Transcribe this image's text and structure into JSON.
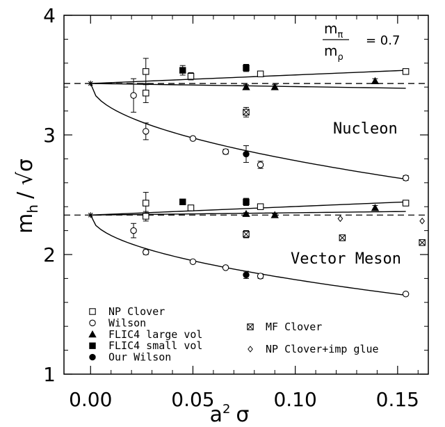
{
  "chart_data": {
    "type": "scatter",
    "title": "",
    "xlabel": "a",
    "xlabel_sup": "2",
    "xlabel_sub": "σ",
    "ylabel_main": "m",
    "ylabel_sub": "h",
    "ylabel_rest": "/ √σ",
    "xlim": [
      -0.013,
      0.165
    ],
    "ylim": [
      1.0,
      4.0
    ],
    "x_ticks": [
      0.0,
      0.05,
      0.1,
      0.15
    ],
    "x_tick_labels": [
      "0.00",
      "0.05",
      "0.10",
      "0.15"
    ],
    "y_ticks": [
      1,
      2,
      3,
      4
    ],
    "y_tick_labels": [
      "1",
      "2",
      "3",
      "4"
    ],
    "grid": false,
    "legend_position": "bottom-left",
    "annotations": {
      "ratio_num": "m",
      "ratio_num_sub": "π",
      "ratio_den": "m",
      "ratio_den_sub": "ρ",
      "ratio_value": "=  0.7",
      "nucleon": "Nucleon",
      "vector": "Vector Meson"
    },
    "series": [
      {
        "name": "NP Clover",
        "marker": "open-square",
        "x": [
          0.027,
          0.027,
          0.049,
          0.083,
          0.154,
          0.027,
          0.027,
          0.049,
          0.083,
          0.154
        ],
        "y": [
          3.53,
          3.35,
          3.49,
          3.51,
          3.53,
          2.43,
          2.32,
          2.39,
          2.4,
          2.43
        ],
        "yerr": [
          0.11,
          0.08,
          0.03,
          0.02,
          0.01,
          0.09,
          0.04,
          0.02,
          0.01,
          0.01
        ]
      },
      {
        "name": "Wilson",
        "marker": "open-circle",
        "x": [
          0.021,
          0.027,
          0.05,
          0.066,
          0.083,
          0.154,
          0.021,
          0.027,
          0.05,
          0.066,
          0.083,
          0.154
        ],
        "y": [
          3.33,
          3.03,
          2.97,
          2.86,
          2.75,
          2.64,
          2.2,
          2.02,
          1.94,
          1.89,
          1.82,
          1.67
        ],
        "yerr": [
          0.14,
          0.07,
          0.01,
          0.02,
          0.03,
          0.02,
          0.06,
          0.02,
          0.01,
          0.01,
          0.02,
          0.01
        ]
      },
      {
        "name": "FLIC4 large vol",
        "marker": "filled-triangle",
        "x": [
          0.076,
          0.09,
          0.139,
          0.076,
          0.09,
          0.139
        ],
        "y": [
          3.4,
          3.4,
          3.45,
          2.34,
          2.33,
          2.39
        ],
        "yerr": [
          0.02,
          0.02,
          0.02,
          0.01,
          0.01,
          0.02
        ]
      },
      {
        "name": "FLIC4 small vol",
        "marker": "filled-square",
        "x": [
          0.045,
          0.076,
          0.045,
          0.076
        ],
        "y": [
          3.54,
          3.56,
          2.44,
          2.44
        ],
        "yerr": [
          0.04,
          0.03,
          0.02,
          0.03
        ]
      },
      {
        "name": "Our Wilson",
        "marker": "filled-circle",
        "x": [
          0.076,
          0.076
        ],
        "y": [
          2.84,
          1.83
        ],
        "yerr": [
          0.07,
          0.03
        ]
      },
      {
        "name": "MF Clover",
        "marker": "boxed-x",
        "x": [
          0.076,
          0.123,
          0.076,
          0.162
        ],
        "y": [
          3.19,
          2.14,
          2.17,
          2.1
        ],
        "yerr": [
          0.04,
          0.0,
          0.03,
          0.0
        ]
      },
      {
        "name": "NP Clover+imp glue",
        "marker": "open-diamond",
        "x": [
          0.122,
          0.162
        ],
        "y": [
          2.3,
          2.28
        ],
        "yerr": [
          0.0,
          0.0
        ]
      }
    ],
    "fit_curves": [
      {
        "kind": "linear",
        "x0": 0.0,
        "y0": 3.43,
        "x1": 0.154,
        "y1": 3.54
      },
      {
        "kind": "linear",
        "x0": 0.0,
        "y0": 3.43,
        "x1": 0.154,
        "y1": 3.39
      },
      {
        "kind": "sqrt",
        "x0": 0.0,
        "y0": 3.43,
        "x1": 0.154,
        "y1": 2.63
      },
      {
        "kind": "linear",
        "x0": 0.0,
        "y0": 2.33,
        "x1": 0.154,
        "y1": 2.44
      },
      {
        "kind": "linear",
        "x0": 0.0,
        "y0": 2.33,
        "x1": 0.154,
        "y1": 2.36
      },
      {
        "kind": "sqrt",
        "x0": 0.0,
        "y0": 2.33,
        "x1": 0.154,
        "y1": 1.66
      }
    ],
    "continuum_points": [
      {
        "x": 0.0,
        "y": 3.43
      },
      {
        "x": 0.0,
        "y": 2.33
      }
    ],
    "reference_lines": [
      3.43,
      2.33
    ],
    "legend_left": [
      "NP Clover",
      "Wilson",
      "FLIC4 large vol",
      "FLIC4 small vol",
      "Our Wilson"
    ],
    "legend_right": [
      "MF Clover",
      "NP Clover+imp glue"
    ]
  }
}
